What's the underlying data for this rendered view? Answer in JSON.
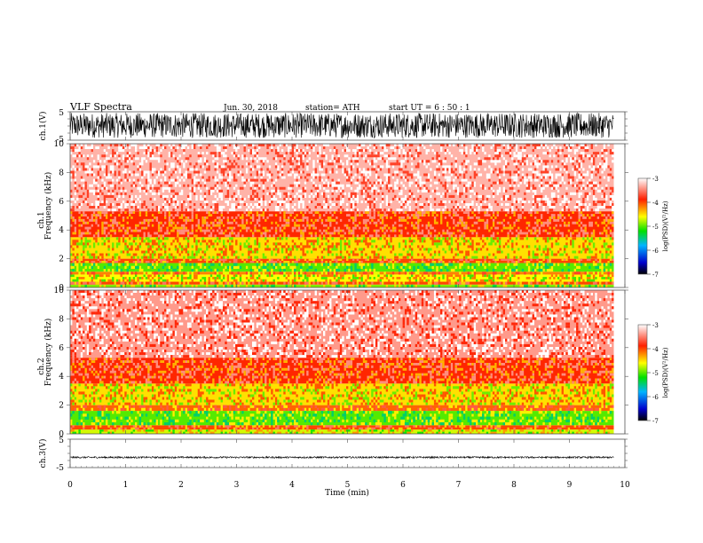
{
  "header": {
    "title": "VLF  Spectra",
    "date": "Jun. 30, 2018",
    "station": "station= ATH",
    "start": "start  UT  =    6  : 50 : 1"
  },
  "chart_data": [
    {
      "type": "line",
      "name": "ch1-waveform",
      "ylabel": "ch.1(V)",
      "yticks": [
        "5",
        "-5"
      ],
      "ylim": [
        -5,
        5
      ],
      "xlim": [
        0,
        10
      ],
      "data_end_min": 9.8,
      "amplitude_range": [
        -4.2,
        4.6
      ],
      "trace_color": "#000000"
    },
    {
      "type": "heatmap",
      "name": "ch1-spectrogram",
      "ylabel": "Frequency  (kHz)",
      "ylabel_prefix": "ch.1",
      "ytick_values": [
        0,
        2,
        4,
        6,
        8,
        10
      ],
      "ylim": [
        0,
        10
      ],
      "xlim": [
        0,
        10
      ],
      "data_end_min": 9.8,
      "colorbar": {
        "label": "log(PSD)(V²/Hz)",
        "ticks": [
          "-3",
          "-4",
          "-5",
          "-6",
          "-7"
        ],
        "range": [
          -7,
          -3
        ],
        "stops": [
          "#000000",
          "#0000cc",
          "#00b4ff",
          "#00e000",
          "#ffff00",
          "#ff2000",
          "#ffffff"
        ]
      },
      "bands": [
        {
          "f0": 0.0,
          "f1": 0.2,
          "level": -4.9
        },
        {
          "f0": 0.2,
          "f1": 0.4,
          "level": -4.0
        },
        {
          "f0": 0.4,
          "f1": 0.9,
          "level": -4.6
        },
        {
          "f0": 0.9,
          "f1": 1.1,
          "level": -4.2
        },
        {
          "f0": 1.1,
          "f1": 1.7,
          "level": -5.0
        },
        {
          "f0": 1.7,
          "f1": 2.0,
          "level": -4.0
        },
        {
          "f0": 2.0,
          "f1": 3.5,
          "level": -4.5
        },
        {
          "f0": 3.5,
          "f1": 5.3,
          "level": -3.9
        },
        {
          "f0": 5.3,
          "f1": 10.0,
          "level": -3.3
        }
      ]
    },
    {
      "type": "heatmap",
      "name": "ch2-spectrogram",
      "ylabel": "Frequency  (kHz)",
      "ylabel_prefix": "ch.2",
      "ytick_values": [
        0,
        2,
        4,
        6,
        8,
        10
      ],
      "ylim": [
        0,
        10
      ],
      "xlim": [
        0,
        10
      ],
      "data_end_min": 9.8,
      "colorbar": {
        "label": "log(PSD)(V²/Hz)",
        "ticks": [
          "-3",
          "-4",
          "-5",
          "-6",
          "-7"
        ],
        "range": [
          -7,
          -3
        ],
        "stops": [
          "#000000",
          "#0000cc",
          "#00b4ff",
          "#00e000",
          "#ffff00",
          "#ff2000",
          "#ffffff"
        ]
      },
      "bands": [
        {
          "f0": 0.0,
          "f1": 0.3,
          "level": -4.7
        },
        {
          "f0": 0.3,
          "f1": 0.6,
          "level": -4.0
        },
        {
          "f0": 0.6,
          "f1": 1.6,
          "level": -5.0
        },
        {
          "f0": 1.6,
          "f1": 2.0,
          "level": -4.1
        },
        {
          "f0": 2.0,
          "f1": 3.5,
          "level": -4.5
        },
        {
          "f0": 3.5,
          "f1": 5.3,
          "level": -3.9
        },
        {
          "f0": 5.3,
          "f1": 10.0,
          "level": -3.4
        }
      ]
    },
    {
      "type": "line",
      "name": "ch3-waveform",
      "ylabel": "ch.3(V)",
      "yticks": [
        "5",
        "-5"
      ],
      "ylim": [
        -5,
        5
      ],
      "xlim": [
        0,
        10
      ],
      "data_end_min": 9.8,
      "amplitude_range": [
        -1.7,
        -1.1
      ],
      "trace_color": "#000000",
      "xlabel": "Time  (min)",
      "xtick_values": [
        0,
        1,
        2,
        3,
        4,
        5,
        6,
        7,
        8,
        9,
        10
      ]
    }
  ]
}
